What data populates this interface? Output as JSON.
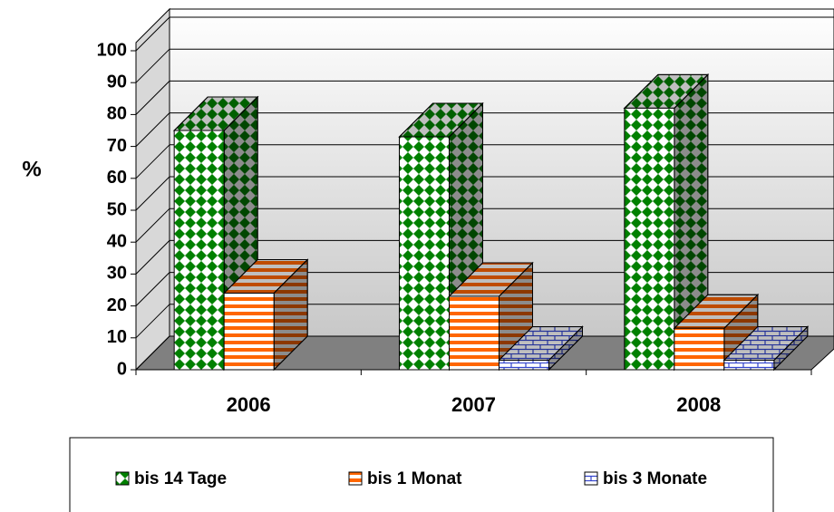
{
  "chart_data": {
    "type": "bar3d",
    "y_axis_label": "%",
    "categories": [
      "2006",
      "2007",
      "2008"
    ],
    "series": [
      {
        "name": "bis 14 Tage",
        "color": "#008000",
        "values": [
          75,
          73,
          82
        ]
      },
      {
        "name": "bis 1 Monat",
        "color": "#ff6600",
        "values": [
          24,
          23,
          13
        ]
      },
      {
        "name": "bis 3 Monate",
        "color": "#3344cc",
        "values": [
          null,
          3,
          3
        ]
      }
    ],
    "ylim": [
      0,
      100
    ],
    "yticks": [
      0,
      10,
      20,
      30,
      40,
      50,
      60,
      70,
      80,
      90,
      100
    ],
    "grid": true,
    "legend": "bottom"
  }
}
